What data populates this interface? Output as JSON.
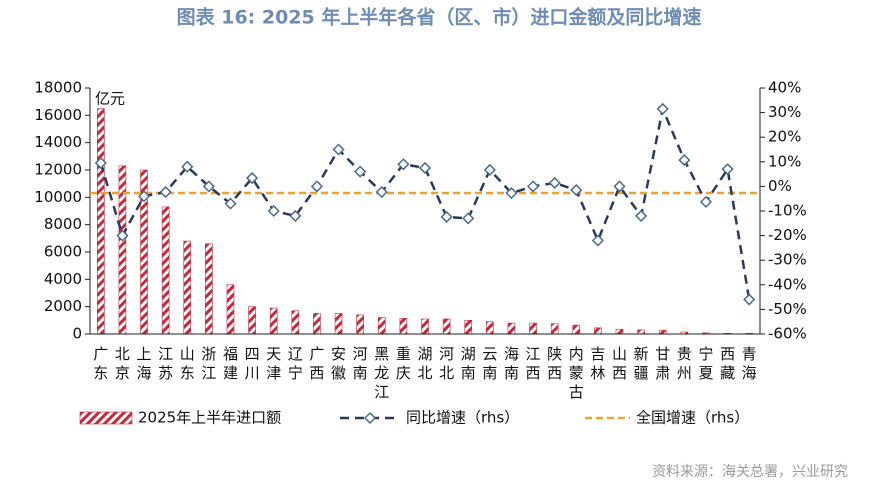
{
  "chart_data": {
    "type": "bar_line",
    "title": "图表 16: 2025 年上半年各省（区、市）进口金额及同比增速",
    "y_unit": "亿元",
    "source": "资料来源：海关总署，兴业研究",
    "categories": [
      "广东",
      "北京",
      "上海",
      "江苏",
      "山东",
      "浙江",
      "福建",
      "四川",
      "天津",
      "辽宁",
      "广西",
      "安徽",
      "河南",
      "黑龙江",
      "重庆",
      "湖北",
      "河北",
      "湖南",
      "云南",
      "海南",
      "江西",
      "陕西",
      "内蒙古",
      "吉林",
      "山西",
      "新疆",
      "甘肃",
      "贵州",
      "宁夏",
      "西藏",
      "青海"
    ],
    "series": [
      {
        "name": "2025年上半年进口额",
        "type": "bar",
        "color": "#c8283c",
        "values": [
          16500,
          12300,
          12000,
          9300,
          6800,
          6600,
          3600,
          2000,
          1900,
          1700,
          1500,
          1500,
          1400,
          1200,
          1150,
          1100,
          1100,
          1000,
          900,
          800,
          800,
          750,
          650,
          450,
          350,
          300,
          280,
          150,
          80,
          50,
          50
        ]
      },
      {
        "name": "同比增速（rhs）",
        "type": "line",
        "axis": "y2",
        "color": "#2b3a5c",
        "marker_color": "#4a6a8c",
        "values": [
          9.5,
          -20,
          -4,
          -2.3,
          8,
          0,
          -7,
          3.4,
          -10,
          -12,
          0,
          15,
          6,
          -2.3,
          9,
          7.5,
          -12.4,
          -13,
          6.7,
          -2.7,
          0,
          1.4,
          -1.5,
          -22,
          0,
          -12,
          31.5,
          10.7,
          -6.3,
          7,
          -46
        ]
      }
    ],
    "reference_line": {
      "name": "全国增速（rhs）",
      "value": -2.7,
      "axis": "y2",
      "color": "#f0a030"
    },
    "ylim": [
      0,
      18000
    ],
    "yticks": [
      0,
      2000,
      4000,
      6000,
      8000,
      10000,
      12000,
      14000,
      16000,
      18000
    ],
    "y2lim": [
      -60,
      40
    ],
    "y2ticks": [
      {
        "value": -60,
        "label": "-60%"
      },
      {
        "value": -50,
        "label": "-50%"
      },
      {
        "value": -40,
        "label": "-40%"
      },
      {
        "value": -30,
        "label": "-30%"
      },
      {
        "value": -20,
        "label": "-20%"
      },
      {
        "value": -10,
        "label": "-10%"
      },
      {
        "value": 0,
        "label": "0%"
      },
      {
        "value": 10,
        "label": "10%"
      },
      {
        "value": 20,
        "label": "20%"
      },
      {
        "value": 30,
        "label": "30%"
      },
      {
        "value": 40,
        "label": "40%"
      }
    ]
  }
}
